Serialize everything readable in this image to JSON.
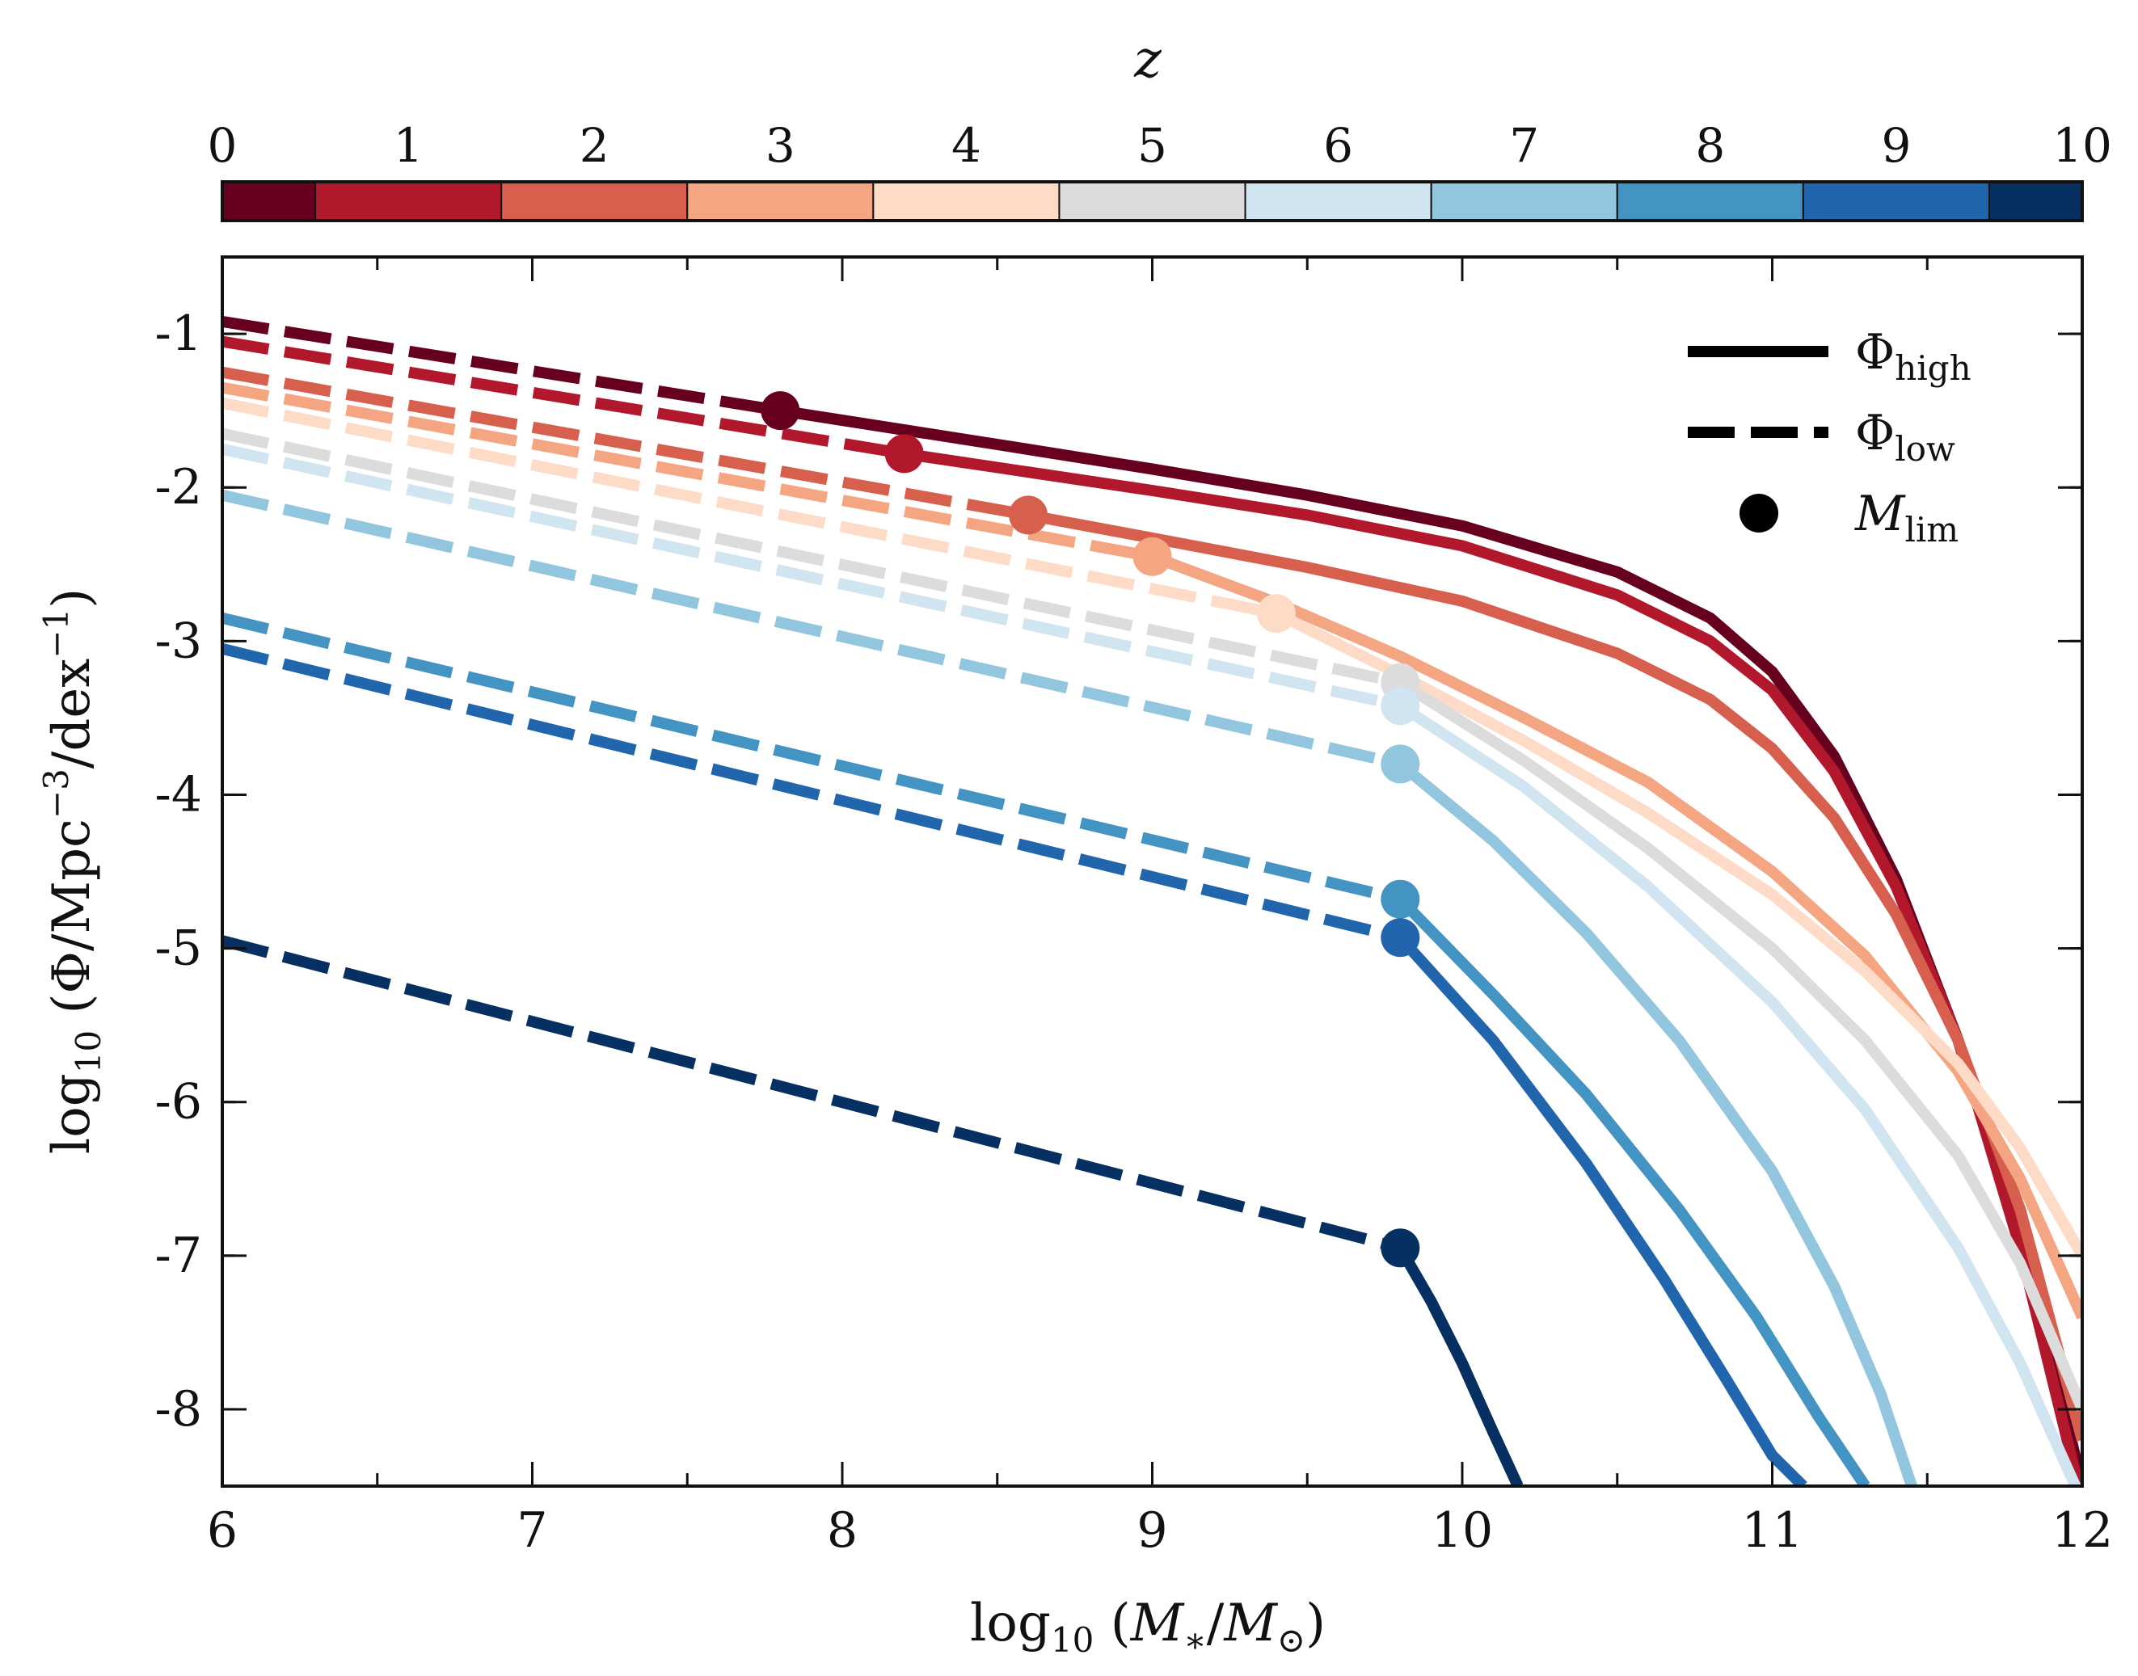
{
  "chart_data": {
    "type": "line",
    "xlabel": "log10 (M*/M⊙)",
    "ylabel": "log10 (Φ/Mpc−3/dex−1)",
    "xlim": [
      6,
      12
    ],
    "ylim": [
      -8.5,
      -0.5
    ],
    "xticks": [
      "6",
      "7",
      "8",
      "9",
      "10",
      "11",
      "12"
    ],
    "yticks": [
      "-1",
      "-2",
      "-3",
      "-4",
      "-5",
      "-6",
      "-7",
      "-8"
    ],
    "colorbar": {
      "label": "z",
      "ticks": [
        "0",
        "1",
        "2",
        "3",
        "4",
        "5",
        "6",
        "7",
        "8",
        "9",
        "10"
      ],
      "colors": [
        "#67001f",
        "#b2182b",
        "#d6604d",
        "#f4a582",
        "#fddbc7",
        "#dcdcdc",
        "#d1e5f0",
        "#92c5de",
        "#4393c3",
        "#2166ac",
        "#053061"
      ]
    },
    "legend": {
      "position": "top-right",
      "entries": [
        {
          "style": "solid",
          "label": "Φ",
          "sub": "high"
        },
        {
          "style": "dashed",
          "label": "Φ",
          "sub": "low"
        },
        {
          "style": "marker",
          "label": "M",
          "sub": "lim"
        }
      ]
    },
    "series": [
      {
        "z": 0,
        "color": "#67001f",
        "M_lim": 7.8,
        "phi_at_lim": -1.5,
        "x_low": [
          6,
          7.8
        ],
        "y_low": [
          -0.92,
          -1.5
        ],
        "x_high": [
          7.8,
          8.5,
          9.0,
          9.5,
          10.0,
          10.5,
          10.8,
          11.0,
          11.2,
          11.4,
          11.6,
          11.8,
          11.9,
          12.0
        ],
        "y_high": [
          -1.5,
          -1.72,
          -1.88,
          -2.05,
          -2.25,
          -2.55,
          -2.85,
          -3.2,
          -3.75,
          -4.55,
          -5.6,
          -6.9,
          -7.65,
          -8.5
        ]
      },
      {
        "z": 1,
        "color": "#b2182b",
        "M_lim": 8.2,
        "phi_at_lim": -1.78,
        "x_low": [
          6,
          8.2
        ],
        "y_low": [
          -1.05,
          -1.78
        ],
        "x_high": [
          8.2,
          8.5,
          9.0,
          9.5,
          10.0,
          10.5,
          10.8,
          11.0,
          11.2,
          11.4,
          11.6,
          11.8,
          12.0
        ],
        "y_high": [
          -1.78,
          -1.87,
          -2.02,
          -2.18,
          -2.38,
          -2.7,
          -3.0,
          -3.32,
          -3.85,
          -4.6,
          -5.6,
          -6.95,
          -8.6
        ]
      },
      {
        "z": 2,
        "color": "#d6604d",
        "M_lim": 8.6,
        "phi_at_lim": -2.18,
        "x_low": [
          6,
          8.6
        ],
        "y_low": [
          -1.25,
          -2.18
        ],
        "x_high": [
          8.6,
          9.0,
          9.5,
          10.0,
          10.5,
          10.8,
          11.0,
          11.2,
          11.4,
          11.6,
          11.8,
          12.0
        ],
        "y_high": [
          -2.18,
          -2.33,
          -2.52,
          -2.74,
          -3.08,
          -3.38,
          -3.7,
          -4.15,
          -4.78,
          -5.6,
          -6.7,
          -8.2
        ]
      },
      {
        "z": 3,
        "color": "#f4a582",
        "M_lim": 9.0,
        "phi_at_lim": -2.45,
        "x_low": [
          6,
          9.0
        ],
        "y_low": [
          -1.35,
          -2.45
        ],
        "x_high": [
          9.0,
          9.4,
          9.8,
          10.2,
          10.6,
          11.0,
          11.3,
          11.6,
          11.8,
          12.0
        ],
        "y_high": [
          -2.45,
          -2.75,
          -3.1,
          -3.5,
          -3.92,
          -4.5,
          -5.05,
          -5.8,
          -6.5,
          -7.4
        ]
      },
      {
        "z": 4,
        "color": "#fddbc7",
        "M_lim": 9.4,
        "phi_at_lim": -2.82,
        "x_low": [
          6,
          9.4
        ],
        "y_low": [
          -1.45,
          -2.82
        ],
        "x_high": [
          9.4,
          9.8,
          10.2,
          10.6,
          11.0,
          11.3,
          11.6,
          11.8,
          12.0
        ],
        "y_high": [
          -2.82,
          -3.22,
          -3.65,
          -4.12,
          -4.65,
          -5.15,
          -5.75,
          -6.3,
          -7.0
        ]
      },
      {
        "z": 5,
        "color": "#dcdcdc",
        "M_lim": 9.8,
        "phi_at_lim": -3.27,
        "x_low": [
          6,
          9.8
        ],
        "y_low": [
          -1.65,
          -3.27
        ],
        "x_high": [
          9.8,
          10.2,
          10.6,
          11.0,
          11.3,
          11.6,
          11.8,
          12.0
        ],
        "y_high": [
          -3.27,
          -3.78,
          -4.35,
          -5.0,
          -5.6,
          -6.35,
          -7.05,
          -8.0
        ]
      },
      {
        "z": 6,
        "color": "#d1e5f0",
        "M_lim": 9.8,
        "phi_at_lim": -3.42,
        "x_low": [
          6,
          9.8
        ],
        "y_low": [
          -1.75,
          -3.42
        ],
        "x_high": [
          9.8,
          10.2,
          10.6,
          11.0,
          11.3,
          11.6,
          11.8,
          12.0
        ],
        "y_high": [
          -3.42,
          -3.95,
          -4.6,
          -5.35,
          -6.05,
          -6.95,
          -7.7,
          -8.6
        ]
      },
      {
        "z": 7,
        "color": "#92c5de",
        "M_lim": 9.8,
        "phi_at_lim": -3.8,
        "x_low": [
          6,
          9.8
        ],
        "y_low": [
          -2.05,
          -3.8
        ],
        "x_high": [
          9.8,
          10.1,
          10.4,
          10.7,
          11.0,
          11.2,
          11.35,
          11.45
        ],
        "y_high": [
          -3.8,
          -4.3,
          -4.9,
          -5.6,
          -6.45,
          -7.2,
          -7.9,
          -8.5
        ]
      },
      {
        "z": 8,
        "color": "#4393c3",
        "M_lim": 9.8,
        "phi_at_lim": -4.68,
        "x_low": [
          6,
          9.8
        ],
        "y_low": [
          -2.85,
          -4.68
        ],
        "x_high": [
          9.8,
          10.1,
          10.4,
          10.7,
          10.95,
          11.15,
          11.3
        ],
        "y_high": [
          -4.68,
          -5.3,
          -5.95,
          -6.7,
          -7.4,
          -8.05,
          -8.5
        ]
      },
      {
        "z": 9,
        "color": "#2166ac",
        "M_lim": 9.8,
        "phi_at_lim": -4.93,
        "x_low": [
          6,
          9.8
        ],
        "y_low": [
          -3.05,
          -4.93
        ],
        "x_high": [
          9.8,
          10.1,
          10.4,
          10.65,
          10.85,
          11.0,
          11.1
        ],
        "y_high": [
          -4.93,
          -5.6,
          -6.4,
          -7.15,
          -7.8,
          -8.3,
          -8.5
        ]
      },
      {
        "z": 10,
        "color": "#053061",
        "M_lim": 9.8,
        "phi_at_lim": -6.95,
        "x_low": [
          6,
          9.8
        ],
        "y_low": [
          -4.95,
          -6.95
        ],
        "x_high": [
          9.8,
          9.9,
          10.0,
          10.1,
          10.18
        ],
        "y_high": [
          -6.95,
          -7.3,
          -7.7,
          -8.15,
          -8.5
        ]
      }
    ]
  }
}
